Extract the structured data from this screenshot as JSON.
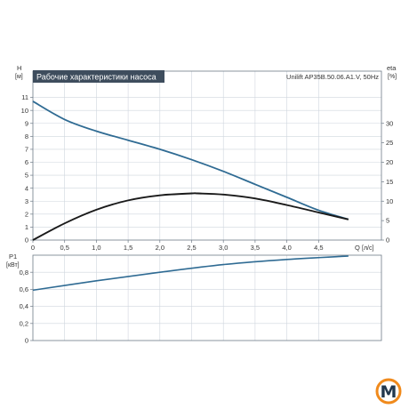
{
  "title": "Рабочие характеристики насоса",
  "model": "Unilift AP35B.50.06.A1.V, 50Hz",
  "logo_letter": "M",
  "colors": {
    "head": "#2f6b93",
    "eta": "#1a1a1a",
    "power": "#2f6b93",
    "title_bg": "#3e4d5d",
    "logo_orange": "#f08a1c",
    "logo_dark": "#22384d"
  },
  "chart_data": [
    {
      "type": "line",
      "x_label": "Q",
      "x_unit": "[л/с]",
      "x_ticks": [
        "0",
        "0,5",
        "1,0",
        "1,5",
        "2,0",
        "2,5",
        "3,0",
        "3,5",
        "4,0",
        "4,5"
      ],
      "xlim": [
        0,
        5.0
      ],
      "y_label": "H",
      "y_unit": "[м]",
      "ylim": [
        0,
        12
      ],
      "y_ticks": [
        "0",
        "1",
        "2",
        "3",
        "4",
        "5",
        "6",
        "7",
        "8",
        "9",
        "10",
        "11"
      ],
      "y2_label": "eta",
      "y2_unit": "[%]",
      "y2lim": [
        0,
        40
      ],
      "y2_ticks": [
        "0",
        "5",
        "10",
        "15",
        "20",
        "25",
        "30"
      ],
      "grid": true,
      "series": [
        {
          "key": "head",
          "axis": "left",
          "x": [
            0,
            0.5,
            1.0,
            1.5,
            2.0,
            2.5,
            3.0,
            3.5,
            4.0,
            4.5,
            4.97
          ],
          "y": [
            10.7,
            9.3,
            8.4,
            7.7,
            7.0,
            6.2,
            5.3,
            4.3,
            3.3,
            2.3,
            1.6
          ]
        },
        {
          "key": "eta",
          "axis": "right",
          "x": [
            0,
            0.5,
            1.0,
            1.5,
            2.0,
            2.5,
            2.6,
            3.0,
            3.5,
            4.0,
            4.5,
            4.97
          ],
          "y": [
            0,
            4.3,
            7.8,
            10.2,
            11.5,
            12.0,
            12.0,
            11.7,
            10.7,
            9.0,
            7.1,
            5.3
          ]
        }
      ]
    },
    {
      "type": "line",
      "y_label": "P1",
      "y_unit": "[кВт]",
      "ylim": [
        0,
        1.0
      ],
      "y_ticks": [
        "0",
        "0,2",
        "0,4",
        "0,6",
        "0,8"
      ],
      "xlim": [
        0,
        5.0
      ],
      "grid": true,
      "series": [
        {
          "key": "power",
          "axis": "left",
          "x": [
            0,
            1.0,
            2.0,
            3.0,
            4.0,
            4.97
          ],
          "y": [
            0.59,
            0.7,
            0.8,
            0.89,
            0.95,
            0.99
          ]
        }
      ]
    }
  ]
}
